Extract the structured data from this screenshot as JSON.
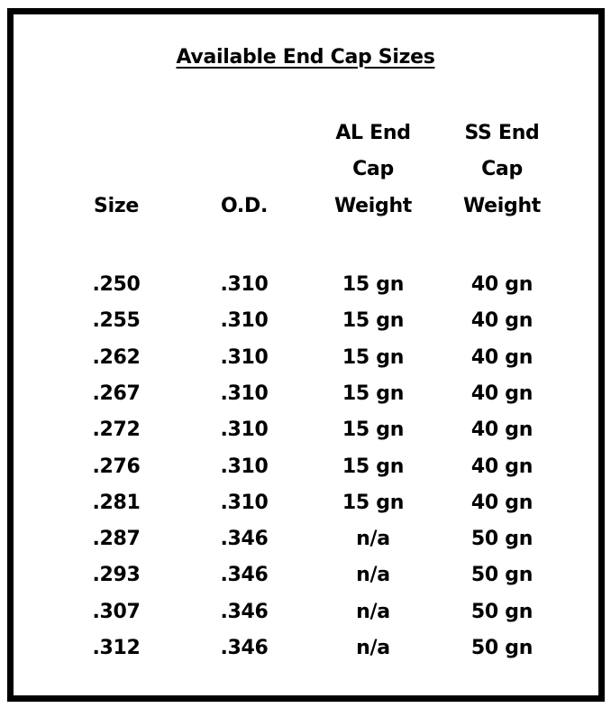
{
  "title": "Available End Cap Sizes",
  "table": {
    "headers": [
      [
        "Size"
      ],
      [
        "O.D."
      ],
      [
        "AL End",
        "Cap",
        "Weight"
      ],
      [
        "SS End",
        "Cap",
        "Weight"
      ]
    ],
    "rows": [
      [
        ".250",
        ".310",
        "15 gn",
        "40 gn"
      ],
      [
        ".255",
        ".310",
        "15 gn",
        "40 gn"
      ],
      [
        ".262",
        ".310",
        "15 gn",
        "40 gn"
      ],
      [
        ".267",
        ".310",
        "15 gn",
        "40 gn"
      ],
      [
        ".272",
        ".310",
        "15 gn",
        "40 gn"
      ],
      [
        ".276",
        ".310",
        "15 gn",
        "40 gn"
      ],
      [
        ".281",
        ".310",
        "15 gn",
        "40 gn"
      ],
      [
        ".287",
        ".346",
        "n/a",
        "50 gn"
      ],
      [
        ".293",
        ".346",
        "n/a",
        "50 gn"
      ],
      [
        ".307",
        ".346",
        "n/a",
        "50 gn"
      ],
      [
        ".312",
        ".346",
        "n/a",
        "50 gn"
      ]
    ]
  }
}
